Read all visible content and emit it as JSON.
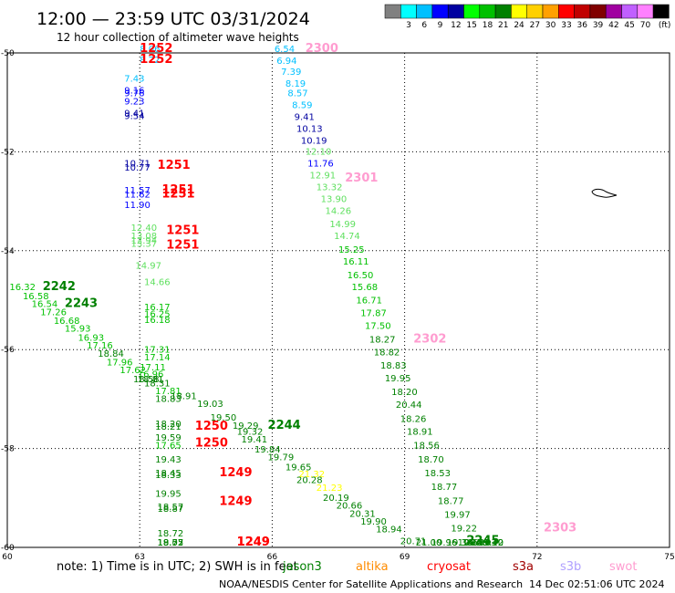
{
  "header": {
    "title": "12:00 — 23:59 UTC 03/31/2024",
    "subtitle": "12 hour collection of altimeter wave heights"
  },
  "color_scale": {
    "boxes": [
      {
        "color": "#808080"
      },
      {
        "color": "#00ffff"
      },
      {
        "color": "#00c0ff"
      },
      {
        "color": "#0000ff"
      },
      {
        "color": "#0000a0"
      },
      {
        "color": "#00ff00"
      },
      {
        "color": "#00c000"
      },
      {
        "color": "#008000"
      },
      {
        "color": "#ffff00"
      },
      {
        "color": "#ffd000"
      },
      {
        "color": "#ffa000"
      },
      {
        "color": "#ff0000"
      },
      {
        "color": "#c00000"
      },
      {
        "color": "#800000"
      },
      {
        "color": "#a000a0"
      },
      {
        "color": "#c060ff"
      },
      {
        "color": "#ff80ff"
      },
      {
        "color": "#000000"
      }
    ],
    "labels": [
      "3",
      "6",
      "9",
      "12",
      "15",
      "18",
      "21",
      "24",
      "27",
      "30",
      "33",
      "36",
      "39",
      "42",
      "45",
      "70"
    ],
    "unit": "(ft)"
  },
  "footer": {
    "note_prefix": "note:  1) Time is in UTC; 2) SWH is in feet",
    "satellites": [
      {
        "name": "jason3",
        "color": "#008000"
      },
      {
        "name": "altika",
        "color": "#ff8c00"
      },
      {
        "name": "cryosat",
        "color": "#ff0000"
      },
      {
        "name": "s3a",
        "color": "#a00000"
      },
      {
        "name": "s3b",
        "color": "#b0a0ff"
      },
      {
        "name": "swot",
        "color": "#ff9cd0"
      }
    ],
    "credit": "NOAA/NESDIS Center for Satellite Applications and Research",
    "timestamp": "14 Dec 02:51:06 UTC 2024"
  },
  "chart_data": {
    "type": "scatter",
    "title": "12:00 — 23:59 UTC 03/31/2024",
    "subtitle": "12 hour collection of altimeter wave heights",
    "xlim": [
      60,
      75
    ],
    "ylim": [
      -60,
      -50
    ],
    "x_ticks": [
      "60",
      "63",
      "66",
      "69",
      "72",
      "75"
    ],
    "y_ticks": [
      "-50",
      "-52",
      "-54",
      "-56",
      "-58",
      "-60"
    ],
    "grid": true,
    "units": "ft",
    "points": [
      {
        "lon": 63.0,
        "lat": -49.98,
        "v": "8.06",
        "c": "#00c0ff"
      },
      {
        "lon": 63.0,
        "lat": -50.2,
        "v": "8.22",
        "c": "#00c0ff"
      },
      {
        "lon": 62.65,
        "lat": -50.58,
        "v": "7.43",
        "c": "#00c0ff"
      },
      {
        "lon": 62.65,
        "lat": -50.82,
        "v": "9.16",
        "c": "#0000ff"
      },
      {
        "lon": 62.65,
        "lat": -50.88,
        "v": "9.76",
        "c": "#0000ff"
      },
      {
        "lon": 62.65,
        "lat": -51.04,
        "v": "9.23",
        "c": "#0000ff"
      },
      {
        "lon": 62.65,
        "lat": -51.28,
        "v": "9.41",
        "c": "#0000a0"
      },
      {
        "lon": 62.65,
        "lat": -51.34,
        "v": "9.54",
        "c": "#0000a0"
      },
      {
        "lon": 62.65,
        "lat": -52.3,
        "v": "10.71",
        "c": "#0000a0"
      },
      {
        "lon": 62.65,
        "lat": -52.38,
        "v": "10.77",
        "c": "#0000a0"
      },
      {
        "lon": 62.65,
        "lat": -52.84,
        "v": "11.57",
        "c": "#0000ff"
      },
      {
        "lon": 62.65,
        "lat": -52.92,
        "v": "11.62",
        "c": "#0000ff"
      },
      {
        "lon": 62.65,
        "lat": -53.14,
        "v": "11.90",
        "c": "#0000ff"
      },
      {
        "lon": 62.8,
        "lat": -53.6,
        "v": "12.40",
        "c": "#60e060"
      },
      {
        "lon": 62.8,
        "lat": -53.76,
        "v": "13.08",
        "c": "#60e060"
      },
      {
        "lon": 62.8,
        "lat": -53.86,
        "v": "12.94",
        "c": "#60e060"
      },
      {
        "lon": 62.8,
        "lat": -53.92,
        "v": "13.37",
        "c": "#60e060"
      },
      {
        "lon": 62.9,
        "lat": -54.36,
        "v": "14.97",
        "c": "#60e060"
      },
      {
        "lon": 63.1,
        "lat": -54.7,
        "v": "14.66",
        "c": "#60e060"
      },
      {
        "lon": 63.1,
        "lat": -55.2,
        "v": "16.17",
        "c": "#00c000"
      },
      {
        "lon": 63.1,
        "lat": -55.34,
        "v": "16.25",
        "c": "#00c000"
      },
      {
        "lon": 63.1,
        "lat": -55.46,
        "v": "16.18",
        "c": "#00c000"
      },
      {
        "lon": 63.1,
        "lat": -56.06,
        "v": "17.31",
        "c": "#00c000"
      },
      {
        "lon": 63.1,
        "lat": -56.22,
        "v": "17.14",
        "c": "#00c000"
      },
      {
        "lon": 63.0,
        "lat": -56.42,
        "v": "17.11",
        "c": "#00c000"
      },
      {
        "lon": 62.95,
        "lat": -56.56,
        "v": "16.96",
        "c": "#00c000"
      },
      {
        "lon": 62.95,
        "lat": -56.66,
        "v": "18.81",
        "c": "#008000"
      },
      {
        "lon": 63.35,
        "lat": -56.9,
        "v": "17.81",
        "c": "#00c000"
      },
      {
        "lon": 63.35,
        "lat": -57.06,
        "v": "18.83",
        "c": "#008000"
      },
      {
        "lon": 63.35,
        "lat": -57.56,
        "v": "18.20",
        "c": "#008000"
      },
      {
        "lon": 63.35,
        "lat": -57.62,
        "v": "18.21",
        "c": "#008000"
      },
      {
        "lon": 63.35,
        "lat": -57.84,
        "v": "19.59",
        "c": "#008000"
      },
      {
        "lon": 63.35,
        "lat": -58.0,
        "v": "17.65",
        "c": "#00c000"
      },
      {
        "lon": 63.35,
        "lat": -58.28,
        "v": "19.43",
        "c": "#008000"
      },
      {
        "lon": 63.35,
        "lat": -58.56,
        "v": "18.45",
        "c": "#008000"
      },
      {
        "lon": 63.35,
        "lat": -58.6,
        "v": "18.33",
        "c": "#008000"
      },
      {
        "lon": 63.35,
        "lat": -58.98,
        "v": "19.95",
        "c": "#008000"
      },
      {
        "lon": 63.4,
        "lat": -59.24,
        "v": "18.57",
        "c": "#008000"
      },
      {
        "lon": 63.4,
        "lat": -59.28,
        "v": "18.87",
        "c": "#008000"
      },
      {
        "lon": 63.4,
        "lat": -59.78,
        "v": "18.72",
        "c": "#008000"
      },
      {
        "lon": 63.4,
        "lat": -60.08,
        "v": "18.55",
        "c": "#008000"
      },
      {
        "lon": 63.4,
        "lat": -60.34,
        "v": "18.72",
        "c": "#008000"
      },
      {
        "lon": 63.4,
        "lat": -60.46,
        "v": "19.07",
        "c": "#008000"
      },
      {
        "lon": 60.05,
        "lat": -54.8,
        "v": "16.32",
        "c": "#00c000"
      },
      {
        "lon": 60.35,
        "lat": -54.98,
        "v": "16.58",
        "c": "#00c000"
      },
      {
        "lon": 60.55,
        "lat": -55.14,
        "v": "16.54",
        "c": "#00c000"
      },
      {
        "lon": 60.75,
        "lat": -55.3,
        "v": "17.26",
        "c": "#00c000"
      },
      {
        "lon": 61.05,
        "lat": -55.48,
        "v": "16.68",
        "c": "#00c000"
      },
      {
        "lon": 61.3,
        "lat": -55.64,
        "v": "15.93",
        "c": "#00c000"
      },
      {
        "lon": 61.6,
        "lat": -55.82,
        "v": "16.93",
        "c": "#00c000"
      },
      {
        "lon": 61.8,
        "lat": -55.98,
        "v": "17.16",
        "c": "#00c000"
      },
      {
        "lon": 62.05,
        "lat": -56.14,
        "v": "18.84",
        "c": "#008000"
      },
      {
        "lon": 62.25,
        "lat": -56.32,
        "v": "17.96",
        "c": "#00c000"
      },
      {
        "lon": 62.55,
        "lat": -56.48,
        "v": "17.62",
        "c": "#00c000"
      },
      {
        "lon": 62.85,
        "lat": -56.66,
        "v": "18.58",
        "c": "#008000"
      },
      {
        "lon": 63.1,
        "lat": -56.74,
        "v": "18.31",
        "c": "#008000"
      },
      {
        "lon": 63.7,
        "lat": -57.0,
        "v": "18.91",
        "c": "#008000"
      },
      {
        "lon": 64.3,
        "lat": -57.16,
        "v": "19.03",
        "c": "#008000"
      },
      {
        "lon": 64.6,
        "lat": -57.44,
        "v": "19.50",
        "c": "#008000"
      },
      {
        "lon": 65.1,
        "lat": -57.6,
        "v": "19.29",
        "c": "#008000"
      },
      {
        "lon": 65.2,
        "lat": -57.72,
        "v": "19.32",
        "c": "#008000"
      },
      {
        "lon": 65.3,
        "lat": -57.88,
        "v": "19.41",
        "c": "#008000"
      },
      {
        "lon": 65.6,
        "lat": -58.08,
        "v": "19.84",
        "c": "#008000"
      },
      {
        "lon": 65.9,
        "lat": -58.24,
        "v": "19.79",
        "c": "#008000"
      },
      {
        "lon": 66.3,
        "lat": -58.44,
        "v": "19.65",
        "c": "#008000"
      },
      {
        "lon": 66.6,
        "lat": -58.58,
        "v": "21.32",
        "c": "#ffff00"
      },
      {
        "lon": 66.55,
        "lat": -58.7,
        "v": "20.28",
        "c": "#008000"
      },
      {
        "lon": 67.0,
        "lat": -58.86,
        "v": "21.23",
        "c": "#ffff00"
      },
      {
        "lon": 67.15,
        "lat": -59.06,
        "v": "20.19",
        "c": "#008000"
      },
      {
        "lon": 67.45,
        "lat": -59.22,
        "v": "20.66",
        "c": "#008000"
      },
      {
        "lon": 67.75,
        "lat": -59.38,
        "v": "20.31",
        "c": "#008000"
      },
      {
        "lon": 68.0,
        "lat": -59.54,
        "v": "19.90",
        "c": "#008000"
      },
      {
        "lon": 68.35,
        "lat": -59.7,
        "v": "18.94",
        "c": "#008000"
      },
      {
        "lon": 68.9,
        "lat": -59.94,
        "v": "20.71",
        "c": "#008000"
      },
      {
        "lon": 69.25,
        "lat": -60.06,
        "v": "21.00",
        "c": "#008000"
      },
      {
        "lon": 69.6,
        "lat": -60.2,
        "v": "19.96",
        "c": "#008000"
      },
      {
        "lon": 69.95,
        "lat": -60.36,
        "v": "19.36",
        "c": "#008000"
      },
      {
        "lon": 70.3,
        "lat": -60.52,
        "v": "19.56",
        "c": "#008000"
      },
      {
        "lon": 70.65,
        "lat": -60.68,
        "v": "19.12",
        "c": "#008000"
      },
      {
        "lon": 66.05,
        "lat": -49.98,
        "v": "6.54",
        "c": "#00c0ff"
      },
      {
        "lon": 66.1,
        "lat": -50.22,
        "v": "6.94",
        "c": "#00c0ff"
      },
      {
        "lon": 66.2,
        "lat": -50.44,
        "v": "7.39",
        "c": "#00c0ff"
      },
      {
        "lon": 66.3,
        "lat": -50.68,
        "v": "8.19",
        "c": "#00c0ff"
      },
      {
        "lon": 66.35,
        "lat": -50.88,
        "v": "8.57",
        "c": "#00c0ff"
      },
      {
        "lon": 66.45,
        "lat": -51.12,
        "v": "8.59",
        "c": "#00c0ff"
      },
      {
        "lon": 66.5,
        "lat": -51.36,
        "v": "9.41",
        "c": "#0000a0"
      },
      {
        "lon": 66.55,
        "lat": -51.6,
        "v": "10.13",
        "c": "#0000a0"
      },
      {
        "lon": 66.65,
        "lat": -51.84,
        "v": "10.19",
        "c": "#0000a0"
      },
      {
        "lon": 66.75,
        "lat": -52.06,
        "v": "12.10",
        "c": "#60e060"
      },
      {
        "lon": 66.8,
        "lat": -52.3,
        "v": "11.76",
        "c": "#0000ff"
      },
      {
        "lon": 66.85,
        "lat": -52.54,
        "v": "12.91",
        "c": "#60e060"
      },
      {
        "lon": 67.0,
        "lat": -52.78,
        "v": "13.32",
        "c": "#60e060"
      },
      {
        "lon": 67.1,
        "lat": -53.02,
        "v": "13.90",
        "c": "#60e060"
      },
      {
        "lon": 67.2,
        "lat": -53.26,
        "v": "14.26",
        "c": "#60e060"
      },
      {
        "lon": 67.3,
        "lat": -53.52,
        "v": "14.99",
        "c": "#60e060"
      },
      {
        "lon": 67.4,
        "lat": -53.76,
        "v": "14.74",
        "c": "#60e060"
      },
      {
        "lon": 67.5,
        "lat": -54.04,
        "v": "15.25",
        "c": "#00c000"
      },
      {
        "lon": 67.6,
        "lat": -54.28,
        "v": "16.11",
        "c": "#00c000"
      },
      {
        "lon": 67.7,
        "lat": -54.56,
        "v": "16.50",
        "c": "#00c000"
      },
      {
        "lon": 67.8,
        "lat": -54.8,
        "v": "15.68",
        "c": "#00c000"
      },
      {
        "lon": 67.9,
        "lat": -55.06,
        "v": "16.71",
        "c": "#00c000"
      },
      {
        "lon": 68.0,
        "lat": -55.32,
        "v": "17.87",
        "c": "#00c000"
      },
      {
        "lon": 68.1,
        "lat": -55.58,
        "v": "17.50",
        "c": "#00c000"
      },
      {
        "lon": 68.2,
        "lat": -55.86,
        "v": "18.27",
        "c": "#008000"
      },
      {
        "lon": 68.3,
        "lat": -56.12,
        "v": "18.82",
        "c": "#008000"
      },
      {
        "lon": 68.45,
        "lat": -56.38,
        "v": "18.83",
        "c": "#008000"
      },
      {
        "lon": 68.55,
        "lat": -56.64,
        "v": "19.95",
        "c": "#008000"
      },
      {
        "lon": 68.7,
        "lat": -56.92,
        "v": "18.20",
        "c": "#008000"
      },
      {
        "lon": 68.8,
        "lat": -57.18,
        "v": "20.44",
        "c": "#008000"
      },
      {
        "lon": 68.9,
        "lat": -57.46,
        "v": "18.26",
        "c": "#008000"
      },
      {
        "lon": 69.05,
        "lat": -57.72,
        "v": "18.91",
        "c": "#008000"
      },
      {
        "lon": 69.2,
        "lat": -58.0,
        "v": "18.56",
        "c": "#008000"
      },
      {
        "lon": 69.3,
        "lat": -58.28,
        "v": "18.70",
        "c": "#008000"
      },
      {
        "lon": 69.45,
        "lat": -58.56,
        "v": "18.53",
        "c": "#008000"
      },
      {
        "lon": 69.6,
        "lat": -58.84,
        "v": "18.77",
        "c": "#008000"
      },
      {
        "lon": 69.75,
        "lat": -59.12,
        "v": "18.77",
        "c": "#008000"
      },
      {
        "lon": 69.9,
        "lat": -59.4,
        "v": "19.97",
        "c": "#008000"
      },
      {
        "lon": 70.05,
        "lat": -59.68,
        "v": "19.22",
        "c": "#008000"
      },
      {
        "lon": 70.2,
        "lat": -59.96,
        "v": "19.64",
        "c": "#008000"
      },
      {
        "lon": 70.35,
        "lat": -60.24,
        "v": "20.30",
        "c": "#008000"
      },
      {
        "lon": 70.5,
        "lat": -60.52,
        "v": "20.03",
        "c": "#008000"
      },
      {
        "lon": 70.65,
        "lat": -60.8,
        "v": "19.40",
        "c": "#008000"
      }
    ],
    "passes": [
      {
        "id": "1252",
        "lon": 63.0,
        "lat": -49.98,
        "c": "#ff0000"
      },
      {
        "id": "1252",
        "lon": 63.0,
        "lat": -50.2,
        "c": "#ff0000"
      },
      {
        "id": "1251",
        "lon": 63.4,
        "lat": -52.34,
        "c": "#ff0000"
      },
      {
        "id": "1251",
        "lon": 63.5,
        "lat": -52.84,
        "c": "#ff0000"
      },
      {
        "id": "1251",
        "lon": 63.5,
        "lat": -52.92,
        "c": "#ff0000"
      },
      {
        "id": "1251",
        "lon": 63.6,
        "lat": -53.66,
        "c": "#ff0000"
      },
      {
        "id": "1251",
        "lon": 63.6,
        "lat": -53.96,
        "c": "#ff0000"
      },
      {
        "id": "2242",
        "lon": 60.8,
        "lat": -54.8,
        "c": "#008000"
      },
      {
        "id": "2243",
        "lon": 61.3,
        "lat": -55.14,
        "c": "#008000"
      },
      {
        "id": "1250",
        "lon": 64.25,
        "lat": -57.62,
        "c": "#ff0000"
      },
      {
        "id": "1250",
        "lon": 64.25,
        "lat": -57.96,
        "c": "#ff0000"
      },
      {
        "id": "2244",
        "lon": 65.9,
        "lat": -57.6,
        "c": "#008000"
      },
      {
        "id": "1249",
        "lon": 64.8,
        "lat": -58.56,
        "c": "#ff0000"
      },
      {
        "id": "1249",
        "lon": 64.8,
        "lat": -59.14,
        "c": "#ff0000"
      },
      {
        "id": "1249",
        "lon": 65.2,
        "lat": -60.34,
        "c": "#ff0000"
      },
      {
        "id": "1249",
        "lon": 65.2,
        "lat": -60.46,
        "c": "#ff0000"
      },
      {
        "id": "2245",
        "lon": 70.4,
        "lat": -59.94,
        "c": "#008000"
      },
      {
        "id": "2300",
        "lon": 66.75,
        "lat": -49.98,
        "c": "#ff9cd0"
      },
      {
        "id": "2301",
        "lon": 67.65,
        "lat": -52.6,
        "c": "#ff9cd0"
      },
      {
        "id": "2302",
        "lon": 69.2,
        "lat": -55.86,
        "c": "#ff9cd0"
      },
      {
        "id": "2303",
        "lon": 72.15,
        "lat": -59.68,
        "c": "#ff9cd0"
      }
    ]
  }
}
